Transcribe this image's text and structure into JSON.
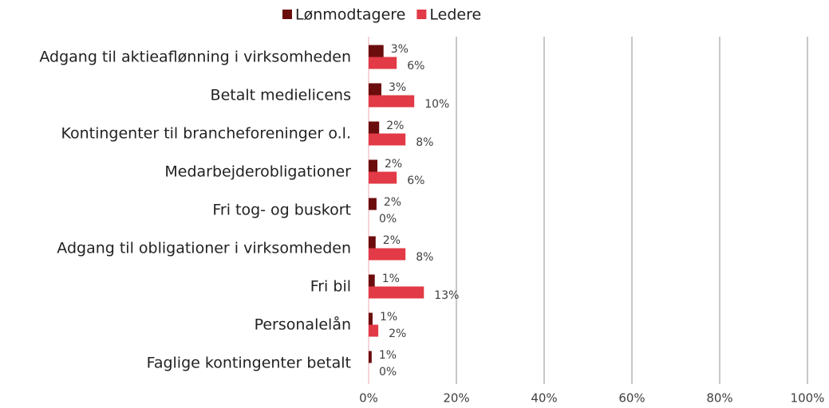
{
  "chart_data": {
    "type": "barh",
    "categories": [
      "Adgang til aktieaflønning i virksomheden",
      "Betalt medielicens",
      "Kontingenter til brancheforeninger o.l.",
      "Medarbejderobligationer",
      "Fri tog- og buskort",
      "Adgang til obligationer i virksomheden",
      "Fri bil",
      "Personalelån",
      "Faglige kontingenter betalt"
    ],
    "series": [
      {
        "name": "Lønmodtagere",
        "color": "#6b0d0d",
        "values": [
          3.4,
          2.9,
          2.4,
          2.0,
          1.8,
          1.6,
          1.4,
          0.9,
          0.7
        ],
        "value_labels": [
          "3%",
          "3%",
          "2%",
          "2%",
          "2%",
          "2%",
          "1%",
          "1%",
          "1%"
        ]
      },
      {
        "name": "Ledere",
        "color": "#e23a46",
        "values": [
          6.4,
          10.4,
          8.4,
          6.4,
          0,
          8.4,
          12.6,
          2.2,
          0
        ],
        "value_labels": [
          "6%",
          "10%",
          "8%",
          "6%",
          "0%",
          "8%",
          "13%",
          "2%",
          "0%"
        ]
      }
    ],
    "xlim": [
      0,
      100
    ],
    "xticks": [
      {
        "value": 0,
        "label": "0%"
      },
      {
        "value": 20,
        "label": "20%"
      },
      {
        "value": 40,
        "label": "40%"
      },
      {
        "value": 60,
        "label": "60%"
      },
      {
        "value": 80,
        "label": "80%"
      },
      {
        "value": 100,
        "label": "100%"
      }
    ],
    "grid": true,
    "legend": "top"
  }
}
